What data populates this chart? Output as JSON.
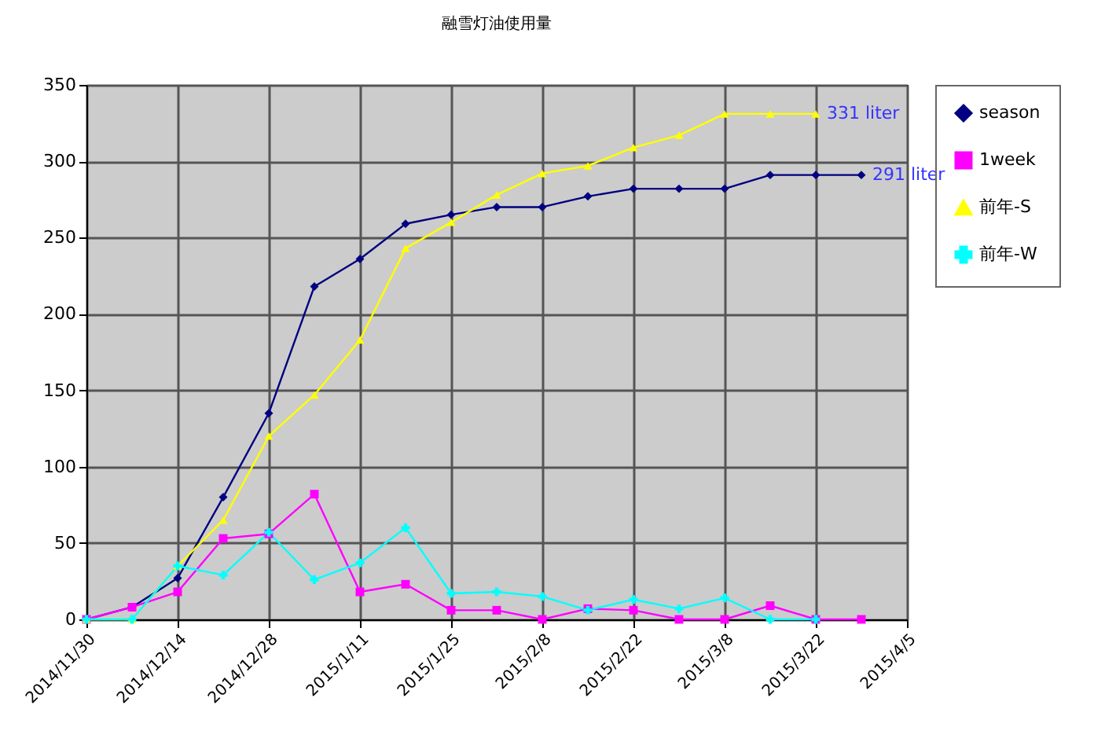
{
  "chart_data": {
    "type": "line",
    "title": "融雪灯油使用量",
    "x": [
      "2014-11-30",
      "2014-12-07",
      "2014-12-14",
      "2014-12-21",
      "2014-12-28",
      "2015-01-04",
      "2015-01-11",
      "2015-01-18",
      "2015-01-25",
      "2015-02-01",
      "2015-02-08",
      "2015-02-15",
      "2015-02-22",
      "2015-03-01",
      "2015-03-08",
      "2015-03-15",
      "2015-03-22",
      "2015-03-29"
    ],
    "series": [
      {
        "name": "season",
        "color": "#000080",
        "marker": "diamond",
        "values": [
          0,
          8,
          27,
          80,
          135,
          218,
          236,
          259,
          265,
          270,
          270,
          277,
          282,
          282,
          282,
          291,
          291,
          291
        ]
      },
      {
        "name": "1week",
        "color": "#ff00ff",
        "marker": "square",
        "values": [
          0,
          8,
          18,
          53,
          56,
          82,
          18,
          23,
          6,
          6,
          0,
          7,
          6,
          0,
          0,
          9,
          0,
          0
        ]
      },
      {
        "name": "前年-S",
        "color": "#ffff00",
        "marker": "triangle",
        "values": [
          0,
          0,
          35,
          65,
          120,
          147,
          183,
          243,
          260,
          278,
          292,
          297,
          309,
          317,
          331,
          331,
          331,
          null
        ]
      },
      {
        "name": "前年-W",
        "color": "#00ffff",
        "marker": "cross",
        "values": [
          0,
          0,
          35,
          29,
          57,
          26,
          37,
          60,
          17,
          18,
          15,
          6,
          13,
          7,
          14,
          0,
          0,
          null
        ]
      }
    ],
    "xlim": [
      "2014-11-30",
      "2015-04-05"
    ],
    "xticks": [
      {
        "value": "2014-11-30",
        "label": "2014/11/30"
      },
      {
        "value": "2014-12-14",
        "label": "2014/12/14"
      },
      {
        "value": "2014-12-28",
        "label": "2014/12/28"
      },
      {
        "value": "2015-01-11",
        "label": "2015/1/11"
      },
      {
        "value": "2015-01-25",
        "label": "2015/1/25"
      },
      {
        "value": "2015-02-08",
        "label": "2015/2/8"
      },
      {
        "value": "2015-02-22",
        "label": "2015/2/22"
      },
      {
        "value": "2015-03-08",
        "label": "2015/3/8"
      },
      {
        "value": "2015-03-22",
        "label": "2015/3/22"
      },
      {
        "value": "2015-04-05",
        "label": "2015/4/5"
      }
    ],
    "ylim": [
      0,
      350
    ],
    "yticks": [
      0,
      50,
      100,
      150,
      200,
      250,
      300,
      350
    ],
    "grid": true,
    "legend": "right",
    "line_style": "solid",
    "annotations": [
      {
        "text": "331 liter",
        "x": "2015-03-22",
        "y": 331
      },
      {
        "text": "291 liter",
        "x": "2015-03-29",
        "y": 291
      }
    ]
  }
}
